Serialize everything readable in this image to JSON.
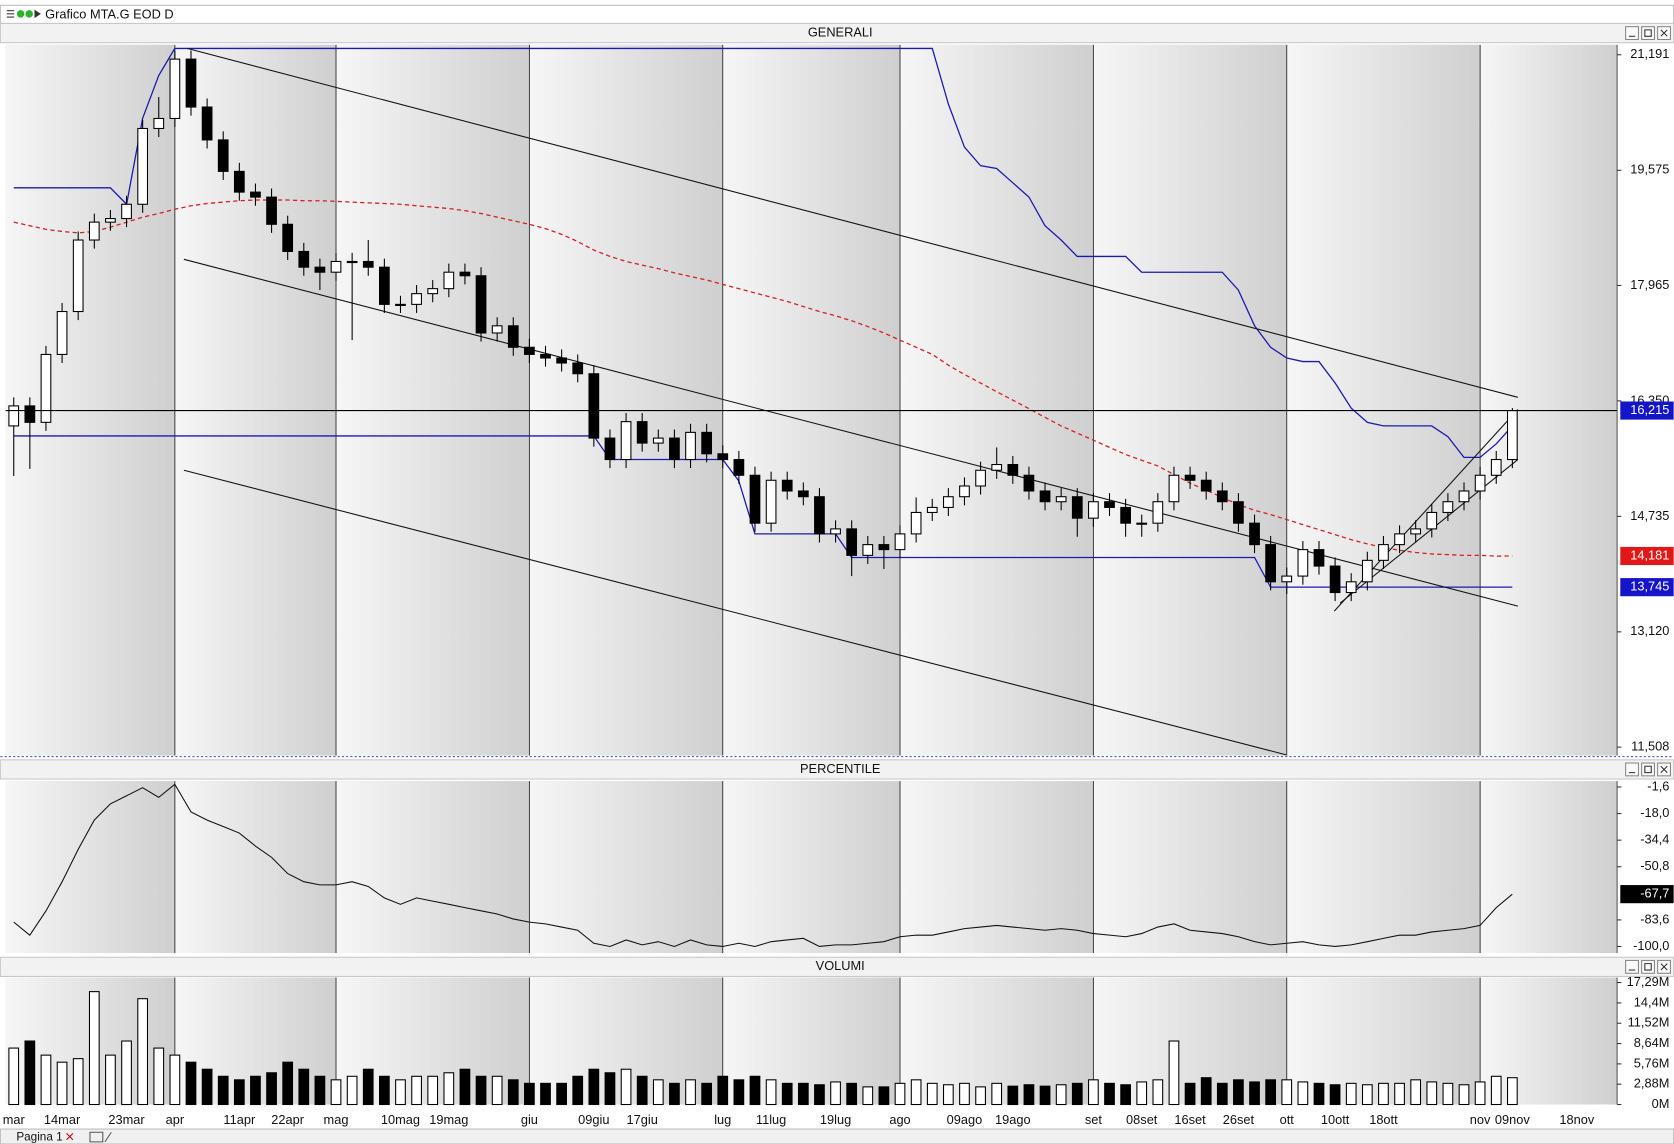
{
  "window": {
    "title": "Grafico MTA.G EOD D",
    "tab": "Pagina 1"
  },
  "chart_data": [
    {
      "type": "candlestick",
      "title": "GENERALI",
      "categories": [
        "mar",
        null,
        null,
        "14mar",
        null,
        null,
        null,
        "23mar",
        null,
        null,
        "apr",
        null,
        null,
        null,
        "11apr",
        null,
        null,
        "22apr",
        null,
        null,
        "mag",
        null,
        null,
        null,
        "10mag",
        null,
        null,
        "19mag",
        null,
        null,
        null,
        null,
        "giu",
        null,
        null,
        null,
        "09giu",
        null,
        null,
        "17giu",
        null,
        null,
        null,
        null,
        "lug",
        null,
        null,
        "11lug",
        null,
        null,
        null,
        "19lug",
        null,
        null,
        null,
        "ago",
        null,
        null,
        null,
        "09ago",
        null,
        null,
        "19ago",
        null,
        null,
        null,
        null,
        "set",
        null,
        null,
        "08set",
        null,
        null,
        "16set",
        null,
        null,
        "26set",
        null,
        null,
        "ott",
        null,
        null,
        "10ott",
        null,
        null,
        "18ott",
        null,
        null,
        null,
        null,
        null,
        "nov",
        null,
        "09nov",
        null,
        null,
        null,
        "18nov",
        null,
        null
      ],
      "open": [
        16.0,
        16.28,
        16.05,
        17.0,
        17.6,
        18.6,
        18.85,
        18.9,
        19.1,
        20.16,
        20.3,
        21.13,
        20.46,
        20.0,
        19.56,
        19.27,
        19.2,
        18.82,
        18.44,
        18.22,
        18.15,
        18.3,
        18.3,
        18.22,
        17.7,
        17.7,
        17.85,
        17.92,
        18.15,
        18.1,
        17.3,
        17.4,
        17.1,
        17.0,
        16.95,
        16.88,
        16.73,
        15.83,
        15.53,
        16.06,
        15.76,
        15.83,
        15.53,
        15.91,
        15.61,
        15.53,
        15.31,
        14.64,
        15.24,
        15.09,
        15.01,
        14.49,
        14.56,
        14.19,
        14.34,
        14.27,
        14.49,
        14.79,
        14.86,
        15.01,
        15.16,
        15.38,
        15.46,
        15.31,
        15.09,
        14.94,
        15.01,
        14.71,
        14.94,
        14.86,
        14.64,
        14.64,
        14.94,
        15.31,
        15.24,
        15.09,
        14.94,
        14.64,
        14.34,
        13.82,
        13.9,
        14.27,
        14.04,
        13.67,
        13.82,
        14.12,
        14.34,
        14.49,
        14.56,
        14.79,
        14.94,
        15.09,
        15.31,
        15.53,
        null,
        null,
        null,
        null,
        null,
        null
      ],
      "high": [
        16.4,
        16.4,
        17.12,
        17.72,
        18.72,
        18.97,
        19.02,
        19.22,
        20.28,
        20.6,
        21.25,
        21.25,
        20.58,
        20.12,
        19.68,
        19.39,
        19.32,
        18.94,
        18.56,
        18.34,
        18.42,
        18.42,
        18.6,
        18.34,
        17.82,
        17.97,
        18.04,
        18.27,
        18.27,
        18.22,
        17.52,
        17.52,
        17.22,
        17.12,
        17.07,
        17.0,
        16.85,
        15.95,
        16.18,
        16.18,
        15.95,
        15.95,
        16.03,
        16.03,
        15.73,
        15.65,
        15.43,
        15.36,
        15.36,
        15.21,
        15.13,
        14.68,
        14.68,
        14.46,
        14.46,
        14.61,
        15.0,
        14.98,
        15.13,
        15.28,
        15.5,
        15.7,
        15.58,
        15.43,
        15.21,
        15.13,
        15.13,
        15.06,
        15.06,
        14.98,
        14.76,
        15.06,
        15.43,
        15.43,
        15.36,
        15.21,
        15.06,
        14.76,
        14.46,
        14.02,
        14.39,
        14.39,
        14.16,
        13.94,
        14.24,
        14.46,
        14.61,
        14.68,
        14.91,
        15.06,
        15.21,
        15.43,
        15.65,
        16.25,
        null,
        null,
        null,
        null,
        null,
        null
      ],
      "low": [
        15.3,
        15.4,
        15.93,
        16.88,
        17.48,
        18.48,
        18.73,
        18.78,
        18.98,
        20.04,
        20.18,
        20.34,
        19.88,
        19.44,
        19.15,
        19.08,
        18.7,
        18.32,
        18.1,
        17.9,
        18.03,
        17.2,
        18.1,
        17.58,
        17.58,
        17.58,
        17.73,
        17.8,
        17.98,
        17.18,
        17.18,
        16.98,
        16.88,
        16.83,
        16.76,
        16.61,
        15.71,
        15.41,
        15.41,
        15.64,
        15.64,
        15.41,
        15.41,
        15.49,
        15.41,
        15.19,
        14.52,
        14.52,
        14.97,
        14.89,
        14.37,
        14.37,
        13.9,
        14.07,
        14.0,
        14.15,
        14.37,
        14.67,
        14.74,
        14.89,
        15.04,
        15.26,
        15.19,
        14.97,
        14.82,
        14.82,
        14.45,
        14.59,
        14.74,
        14.45,
        14.45,
        14.52,
        14.82,
        15.12,
        14.97,
        14.82,
        14.52,
        14.22,
        13.7,
        13.65,
        13.78,
        13.92,
        13.55,
        13.55,
        13.7,
        14.0,
        14.22,
        14.37,
        14.44,
        14.67,
        14.82,
        14.97,
        15.19,
        15.41,
        null,
        null,
        null,
        null,
        null,
        null
      ],
      "close": [
        16.28,
        16.05,
        17.0,
        17.6,
        18.6,
        18.85,
        18.9,
        19.1,
        20.16,
        20.3,
        21.13,
        20.46,
        20.0,
        19.56,
        19.27,
        19.2,
        18.82,
        18.44,
        18.22,
        18.15,
        18.3,
        18.3,
        18.22,
        17.7,
        17.7,
        17.85,
        17.92,
        18.15,
        18.1,
        17.3,
        17.4,
        17.1,
        17.0,
        16.95,
        16.88,
        16.73,
        15.83,
        15.53,
        16.06,
        15.76,
        15.83,
        15.53,
        15.91,
        15.61,
        15.53,
        15.31,
        14.64,
        15.24,
        15.09,
        15.01,
        14.49,
        14.56,
        14.19,
        14.34,
        14.27,
        14.49,
        14.79,
        14.86,
        15.01,
        15.16,
        15.38,
        15.46,
        15.31,
        15.09,
        14.94,
        15.01,
        14.71,
        14.94,
        14.86,
        14.64,
        14.64,
        14.94,
        15.31,
        15.24,
        15.09,
        14.94,
        14.64,
        14.34,
        13.82,
        13.9,
        14.27,
        14.04,
        13.67,
        13.82,
        14.12,
        14.34,
        14.49,
        14.56,
        14.79,
        14.94,
        15.09,
        15.31,
        15.53,
        16.215,
        null,
        null,
        null,
        null,
        null,
        null
      ],
      "up_color": "#ffffff",
      "down_color": "#000000",
      "overlays": [
        {
          "color": "#1a1ab0",
          "values": [
            19.33,
            19.33,
            19.33,
            19.33,
            19.33,
            19.33,
            19.33,
            19.1,
            20.3,
            20.9,
            21.28,
            21.28,
            21.28,
            21.28,
            21.28,
            21.28,
            21.28,
            21.28,
            21.28,
            21.28,
            21.28,
            21.28,
            21.28,
            21.28,
            21.28,
            21.28,
            21.28,
            21.28,
            21.28,
            21.28,
            21.28,
            21.28,
            21.28,
            21.28,
            21.28,
            21.28,
            21.28,
            21.28,
            21.28,
            21.28,
            21.28,
            21.28,
            21.28,
            21.28,
            21.28,
            21.28,
            21.28,
            21.28,
            21.28,
            21.28,
            21.28,
            21.28,
            21.28,
            21.28,
            21.28,
            21.28,
            21.28,
            21.28,
            20.5,
            19.9,
            19.64,
            19.6,
            19.4,
            19.2,
            18.8,
            18.6,
            18.37,
            18.37,
            18.37,
            18.37,
            18.15,
            18.15,
            18.15,
            18.15,
            18.15,
            18.15,
            17.9,
            17.4,
            17.1,
            16.95,
            16.9,
            16.9,
            16.6,
            16.25,
            16.05,
            16.0,
            16.0,
            16.0,
            16.0,
            15.85,
            15.56,
            15.56,
            15.75,
            16.0,
            null,
            null,
            null,
            null,
            null,
            null
          ]
        },
        {
          "color": "#1a1ab0",
          "values": [
            15.86,
            15.86,
            15.86,
            15.86,
            15.86,
            15.86,
            15.86,
            15.86,
            15.86,
            15.86,
            15.86,
            15.86,
            15.86,
            15.86,
            15.86,
            15.86,
            15.86,
            15.86,
            15.86,
            15.86,
            15.86,
            15.86,
            15.86,
            15.86,
            15.86,
            15.86,
            15.86,
            15.86,
            15.86,
            15.86,
            15.86,
            15.86,
            15.86,
            15.86,
            15.86,
            15.86,
            15.86,
            15.53,
            15.53,
            15.53,
            15.53,
            15.53,
            15.53,
            15.53,
            15.53,
            15.23,
            14.49,
            14.49,
            14.49,
            14.49,
            14.49,
            14.49,
            14.16,
            14.16,
            14.16,
            14.16,
            14.16,
            14.16,
            14.16,
            14.16,
            14.16,
            14.16,
            14.16,
            14.16,
            14.16,
            14.16,
            14.16,
            14.16,
            14.16,
            14.16,
            14.16,
            14.16,
            14.16,
            14.16,
            14.16,
            14.16,
            14.16,
            14.16,
            13.745,
            13.745,
            13.745,
            13.745,
            13.745,
            13.745,
            13.745,
            13.745,
            13.745,
            13.745,
            13.745,
            13.745,
            13.745,
            13.745,
            13.745,
            13.745,
            null,
            null,
            null,
            null,
            null,
            null
          ]
        },
        {
          "color": "#d42020",
          "dash": true,
          "values": [
            18.85,
            18.8,
            18.75,
            18.72,
            18.7,
            18.72,
            18.78,
            18.85,
            18.92,
            18.97,
            19.03,
            19.08,
            19.11,
            19.13,
            19.15,
            19.16,
            19.16,
            19.16,
            19.15,
            19.15,
            19.14,
            19.13,
            19.12,
            19.11,
            19.1,
            19.08,
            19.06,
            19.04,
            19.01,
            18.97,
            18.92,
            18.87,
            18.82,
            18.76,
            18.68,
            18.58,
            18.46,
            18.37,
            18.3,
            18.25,
            18.2,
            18.14,
            18.09,
            18.04,
            17.98,
            17.92,
            17.86,
            17.8,
            17.74,
            17.67,
            17.6,
            17.54,
            17.47,
            17.39,
            17.3,
            17.2,
            17.1,
            17.0,
            16.85,
            16.72,
            16.6,
            16.48,
            16.36,
            16.24,
            16.12,
            16.0,
            15.9,
            15.8,
            15.7,
            15.6,
            15.52,
            15.44,
            15.32,
            15.2,
            15.1,
            15.0,
            14.9,
            14.82,
            14.76,
            14.69,
            14.62,
            14.55,
            14.48,
            14.41,
            14.35,
            14.3,
            14.26,
            14.23,
            14.21,
            14.2,
            14.19,
            14.19,
            14.18,
            14.181,
            null,
            null,
            null,
            null,
            null,
            null
          ]
        }
      ],
      "trendline_color": "#111111",
      "trendlines": [
        {
          "x": [
            10.76,
            93.34
          ],
          "y": [
            21.28,
            16.4
          ]
        },
        {
          "x": [
            10.56,
            93.34
          ],
          "y": [
            18.33,
            13.48
          ]
        },
        {
          "x": [
            10.56,
            78.97
          ],
          "y": [
            15.38,
            11.4
          ]
        },
        {
          "x": [
            81.95,
            93.34
          ],
          "y": [
            13.41,
            16.23
          ]
        },
        {
          "x": [
            82.3,
            93.34
          ],
          "y": [
            13.52,
            15.53
          ]
        }
      ],
      "ylim": [
        11.39,
        21.33
      ],
      "yticks": [
        {
          "value": 21.191,
          "label": "21,191"
        },
        {
          "value": 19.575,
          "label": "19,575"
        },
        {
          "value": 17.965,
          "label": "17,965"
        },
        {
          "value": 16.35,
          "label": "16,350"
        },
        {
          "value": 14.735,
          "label": "14,735"
        },
        {
          "value": 13.12,
          "label": "13,120"
        },
        {
          "value": 11.508,
          "label": "11,508"
        }
      ],
      "markers": [
        {
          "value": 16.215,
          "label": "16,215",
          "color": "#1414c8",
          "rule": true
        },
        {
          "value": 14.181,
          "label": "14,181",
          "color": "#e01818"
        },
        {
          "value": 13.745,
          "label": "13,745",
          "color": "#1414c8"
        }
      ]
    },
    {
      "type": "line",
      "title": "PERCENTILE",
      "color": "#111111",
      "values": [
        -85,
        -93,
        -78,
        -60,
        -40,
        -22,
        -12,
        -7,
        -2,
        -8,
        0,
        -17,
        -22,
        -26,
        -30,
        -38,
        -45,
        -55,
        -60,
        -62,
        -62,
        -60,
        -63,
        -70,
        -74,
        -70,
        -72,
        -74,
        -76,
        -78,
        -80,
        -83,
        -85,
        -86,
        -88,
        -90,
        -98,
        -100,
        -96,
        -99,
        -97,
        -100,
        -96,
        -99,
        -100,
        -98,
        -100,
        -97,
        -96,
        -95,
        -100,
        -99,
        -99,
        -98,
        -97,
        -94,
        -93,
        -93,
        -91,
        -89,
        -88,
        -87,
        -88,
        -89,
        -90,
        -89,
        -90,
        -92,
        -93,
        -94,
        -92,
        -88,
        -86,
        -90,
        -91,
        -92,
        -94,
        -97,
        -99,
        -98,
        -97,
        -99,
        -100,
        -99,
        -97,
        -95,
        -93,
        -93,
        -91,
        -90,
        -89,
        -87,
        -76,
        -67.7,
        null,
        null,
        null,
        null,
        null,
        null
      ],
      "ylim": [
        -104,
        2
      ],
      "yticks": [
        {
          "value": -1.6,
          "label": "-1,6"
        },
        {
          "value": -18,
          "label": "-18,0"
        },
        {
          "value": -34.4,
          "label": "-34,4"
        },
        {
          "value": -50.8,
          "label": "-50,8"
        },
        {
          "value": -83.6,
          "label": "-83,6"
        },
        {
          "value": -100,
          "label": "-100,0"
        }
      ],
      "markers": [
        {
          "value": -67.7,
          "label": "-67,7",
          "color": "#000000"
        }
      ]
    },
    {
      "type": "bar",
      "title": "VOLUMI",
      "values": [
        8,
        9,
        7,
        6,
        6.5,
        16,
        7,
        9,
        15,
        8,
        7,
        6,
        5,
        4,
        3.5,
        4,
        4.5,
        6,
        5,
        4,
        3.5,
        4,
        5,
        4,
        3.5,
        4,
        4,
        4.5,
        5,
        4,
        4,
        3.5,
        3,
        3,
        3,
        4,
        5,
        4.5,
        5,
        4,
        3.5,
        3,
        3.5,
        3,
        4,
        3.5,
        4,
        3.5,
        3,
        3,
        2.8,
        3.2,
        3,
        2.5,
        2.5,
        3,
        3.5,
        3,
        2.8,
        3,
        2.5,
        3,
        2.6,
        2.8,
        2.6,
        2.8,
        3,
        3.5,
        3,
        2.8,
        3.2,
        3.5,
        9,
        3,
        3.8,
        3,
        3.5,
        3.2,
        3.5,
        3.5,
        3.2,
        3,
        2.8,
        3,
        2.8,
        3,
        3,
        3.5,
        3.2,
        3,
        2.8,
        3.2,
        4,
        3.8,
        null,
        null,
        null,
        null,
        null,
        null
      ],
      "ylim": [
        0,
        18
      ],
      "yticks": [
        {
          "value": 17.29,
          "label": "17,29M"
        },
        {
          "value": 14.4,
          "label": "14,4M"
        },
        {
          "value": 11.52,
          "label": "11,52M"
        },
        {
          "value": 8.64,
          "label": "8,64M"
        },
        {
          "value": 5.76,
          "label": "5,76M"
        },
        {
          "value": 2.88,
          "label": "2,88M"
        },
        {
          "value": 0,
          "label": "0M"
        }
      ]
    }
  ]
}
